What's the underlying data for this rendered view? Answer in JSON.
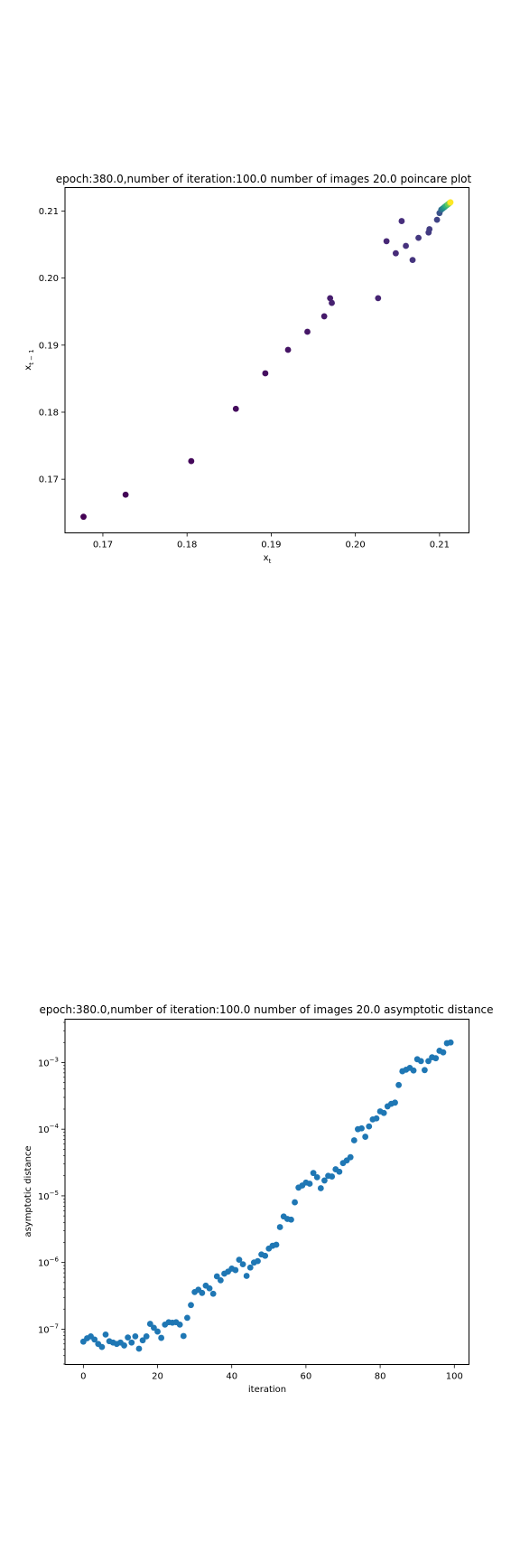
{
  "chart_data": [
    {
      "type": "scatter",
      "title": "epoch:380.0,number of iteration:100.0 number of images 20.0 poincare plot",
      "xlabel": "x_t",
      "ylabel": "x_{t-1}",
      "xlabel_main": "x",
      "xlabel_sub": "t",
      "ylabel_main": "x",
      "ylabel_sub": "t − 1",
      "xlim": [
        0.1655,
        0.2135
      ],
      "ylim": [
        0.162,
        0.2135
      ],
      "xticks": [
        0.17,
        0.18,
        0.19,
        0.2,
        0.21
      ],
      "xtick_labels": [
        "0.17",
        "0.18",
        "0.19",
        "0.20",
        "0.21"
      ],
      "yticks": [
        0.17,
        0.18,
        0.19,
        0.2,
        0.21
      ],
      "ytick_labels": [
        "0.17",
        "0.18",
        "0.19",
        "0.20",
        "0.21"
      ],
      "colormap": "viridis",
      "colormap_stops": [
        "#440154",
        "#472d7b",
        "#3b528b",
        "#2c728e",
        "#21918c",
        "#28ae80",
        "#5ec962",
        "#addc30",
        "#fde725"
      ],
      "points": [
        {
          "x": 0.1677,
          "y": 0.1644,
          "c": 0.0
        },
        {
          "x": 0.1727,
          "y": 0.1677,
          "c": 0.01
        },
        {
          "x": 0.1805,
          "y": 0.1727,
          "c": 0.02
        },
        {
          "x": 0.1858,
          "y": 0.1805,
          "c": 0.03
        },
        {
          "x": 0.1893,
          "y": 0.1858,
          "c": 0.04
        },
        {
          "x": 0.192,
          "y": 0.1893,
          "c": 0.05
        },
        {
          "x": 0.1943,
          "y": 0.192,
          "c": 0.06
        },
        {
          "x": 0.1963,
          "y": 0.1943,
          "c": 0.07
        },
        {
          "x": 0.197,
          "y": 0.197,
          "c": 0.08
        },
        {
          "x": 0.1972,
          "y": 0.1963,
          "c": 0.09
        },
        {
          "x": 0.2027,
          "y": 0.197,
          "c": 0.1
        },
        {
          "x": 0.2037,
          "y": 0.2055,
          "c": 0.11
        },
        {
          "x": 0.2048,
          "y": 0.2037,
          "c": 0.12
        },
        {
          "x": 0.2055,
          "y": 0.2085,
          "c": 0.13
        },
        {
          "x": 0.206,
          "y": 0.2048,
          "c": 0.14
        },
        {
          "x": 0.2068,
          "y": 0.2027,
          "c": 0.15
        },
        {
          "x": 0.2075,
          "y": 0.206,
          "c": 0.16
        },
        {
          "x": 0.2087,
          "y": 0.2068,
          "c": 0.17
        },
        {
          "x": 0.2088,
          "y": 0.2073,
          "c": 0.18
        },
        {
          "x": 0.2097,
          "y": 0.2087,
          "c": 0.2
        },
        {
          "x": 0.21,
          "y": 0.2097,
          "c": 0.25
        },
        {
          "x": 0.2102,
          "y": 0.2102,
          "c": 0.35
        },
        {
          "x": 0.2104,
          "y": 0.2104,
          "c": 0.45
        },
        {
          "x": 0.2106,
          "y": 0.2106,
          "c": 0.55
        },
        {
          "x": 0.2108,
          "y": 0.2108,
          "c": 0.65
        },
        {
          "x": 0.211,
          "y": 0.211,
          "c": 0.75
        },
        {
          "x": 0.2112,
          "y": 0.2112,
          "c": 0.85
        },
        {
          "x": 0.2113,
          "y": 0.2113,
          "c": 1.0
        }
      ]
    },
    {
      "type": "scatter",
      "title": "epoch:380.0,number of iteration:100.0  number of images 20.0 asymptotic distance",
      "xlabel": "iteration",
      "ylabel": "asymptotic distance",
      "xscale": "linear",
      "yscale": "log",
      "xlim": [
        -4.95,
        103.95
      ],
      "ylim_log10": [
        -7.53,
        -2.35
      ],
      "xticks": [
        0,
        20,
        40,
        60,
        80,
        100
      ],
      "xtick_labels": [
        "0",
        "20",
        "40",
        "60",
        "80",
        "100"
      ],
      "yticks_log10": [
        -7,
        -6,
        -5,
        -4,
        -3
      ],
      "ytick_labels": [
        {
          "base": "10",
          "exp": "−7"
        },
        {
          "base": "10",
          "exp": "−6"
        },
        {
          "base": "10",
          "exp": "−5"
        },
        {
          "base": "10",
          "exp": "−4"
        },
        {
          "base": "10",
          "exp": "−3"
        }
      ],
      "color": "#1f77b4",
      "x": [
        0,
        1,
        2,
        3,
        4,
        5,
        6,
        7,
        8,
        9,
        10,
        11,
        12,
        13,
        14,
        15,
        16,
        17,
        18,
        19,
        20,
        21,
        22,
        23,
        24,
        25,
        26,
        27,
        28,
        29,
        30,
        31,
        32,
        33,
        34,
        35,
        36,
        37,
        38,
        39,
        40,
        41,
        42,
        43,
        44,
        45,
        46,
        47,
        48,
        49,
        50,
        51,
        52,
        53,
        54,
        55,
        56,
        57,
        58,
        59,
        60,
        61,
        62,
        63,
        64,
        65,
        66,
        67,
        68,
        69,
        70,
        71,
        72,
        73,
        74,
        75,
        76,
        77,
        78,
        79,
        80,
        81,
        82,
        83,
        84,
        85,
        86,
        87,
        88,
        89,
        90,
        91,
        92,
        93,
        94,
        95,
        96,
        97,
        98,
        99
      ],
      "y": [
        6.5e-08,
        7.3e-08,
        7.8e-08,
        7e-08,
        6e-08,
        5.4e-08,
        8.3e-08,
        6.6e-08,
        6.3e-08,
        6e-08,
        6.3e-08,
        5.7e-08,
        7.5e-08,
        6.3e-08,
        7.8e-08,
        5.1e-08,
        6.8e-08,
        7.8e-08,
        1.2e-07,
        1.05e-07,
        9.2e-08,
        7.4e-08,
        1.17e-07,
        1.27e-07,
        1.25e-07,
        1.27e-07,
        1.17e-07,
        7.9e-08,
        1.48e-07,
        2.3e-07,
        3.6e-07,
        3.9e-07,
        3.5e-07,
        4.5e-07,
        4.1e-07,
        3.4e-07,
        6.2e-07,
        5.4e-07,
        6.8e-07,
        7.3e-07,
        8.1e-07,
        7.7e-07,
        1.1e-06,
        9.4e-07,
        6.3e-07,
        8.4e-07,
        1e-06,
        1.05e-06,
        1.32e-06,
        1.26e-06,
        1.62e-06,
        1.78e-06,
        1.85e-06,
        3.4e-06,
        4.9e-06,
        4.5e-06,
        4.4e-06,
        8e-06,
        1.33e-05,
        1.43e-05,
        1.58e-05,
        1.52e-05,
        2.2e-05,
        1.9e-05,
        1.3e-05,
        1.7e-05,
        2e-05,
        1.95e-05,
        2.5e-05,
        2.3e-05,
        3.1e-05,
        3.4e-05,
        3.8e-05,
        6.8e-05,
        0.0001,
        0.000103,
        7.7e-05,
        0.00011,
        0.00014,
        0.000145,
        0.000185,
        0.000175,
        0.00022,
        0.00024,
        0.00025,
        0.00046,
        0.00074,
        0.00078,
        0.00083,
        0.00076,
        0.00112,
        0.00105,
        0.00077,
        0.00105,
        0.0012,
        0.00116,
        0.0015,
        0.00142,
        0.00195,
        0.002
      ]
    }
  ]
}
